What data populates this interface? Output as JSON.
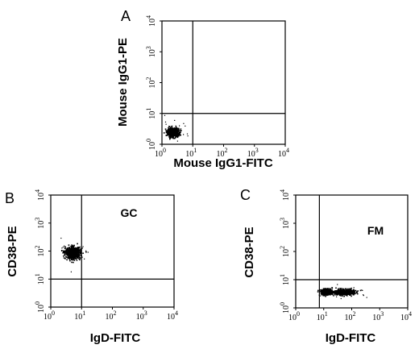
{
  "chart_data": [
    {
      "type": "scatter",
      "panel_letter": "A",
      "xlabel": "Mouse IgG1-FITC",
      "ylabel": "Mouse IgG1-PE",
      "x_scale": "log",
      "y_scale": "log",
      "xlim": [
        1,
        10000
      ],
      "ylim": [
        1,
        10000
      ],
      "x_ticks": [
        1,
        10,
        100,
        1000,
        10000
      ],
      "y_ticks": [
        1,
        10,
        100,
        1000,
        10000
      ],
      "x_gate": 10,
      "y_gate": 10,
      "inner_label": "",
      "clusters": [
        {
          "x_center": 2.2,
          "y_center": 2.5,
          "x_spread": 0.09,
          "y_spread": 0.07,
          "count": 650
        }
      ]
    },
    {
      "type": "scatter",
      "panel_letter": "B",
      "xlabel": "IgD-FITC",
      "ylabel": "CD38-PE",
      "x_scale": "log",
      "y_scale": "log",
      "xlim": [
        1,
        10000
      ],
      "ylim": [
        1,
        10000
      ],
      "x_ticks": [
        1,
        10,
        100,
        1000,
        10000
      ],
      "y_ticks": [
        1,
        10,
        100,
        1000,
        10000
      ],
      "x_gate": 10,
      "y_gate": 10,
      "inner_label": "GC",
      "clusters": [
        {
          "x_center": 5,
          "y_center": 90,
          "x_spread": 0.12,
          "y_spread": 0.1,
          "count": 700
        }
      ]
    },
    {
      "type": "scatter",
      "panel_letter": "C",
      "xlabel": "IgD-FITC",
      "ylabel": "CD38-PE",
      "x_scale": "log",
      "y_scale": "log",
      "xlim": [
        1,
        10000
      ],
      "ylim": [
        1,
        10000
      ],
      "x_ticks": [
        1,
        10,
        100,
        1000,
        10000
      ],
      "y_ticks": [
        1,
        10,
        100,
        1000,
        10000
      ],
      "x_gate": 7,
      "y_gate": 10,
      "inner_label": "FM",
      "clusters": [
        {
          "x_center": 12,
          "y_center": 3.8,
          "x_spread": 0.1,
          "y_spread": 0.05,
          "count": 380
        },
        {
          "x_center": 50,
          "y_center": 3.8,
          "x_spread": 0.18,
          "y_spread": 0.05,
          "count": 520
        }
      ]
    }
  ]
}
